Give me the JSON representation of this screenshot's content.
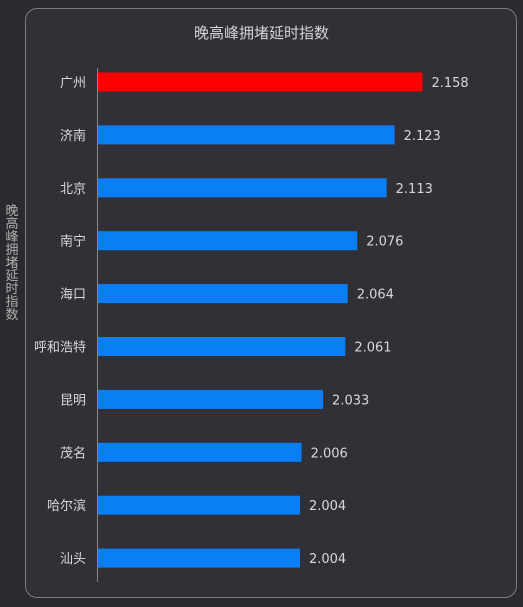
{
  "chart_data": {
    "type": "bar",
    "orientation": "horizontal",
    "title": "晚高峰拥堵延时指数",
    "ylabel": "晚高峰拥堵延时指数",
    "xlabel": "",
    "xlim": [
      1.75,
      2.17
    ],
    "categories": [
      "广州",
      "济南",
      "北京",
      "南宁",
      "海口",
      "呼和浩特",
      "昆明",
      "茂名",
      "哈尔滨",
      "汕头"
    ],
    "values": [
      2.158,
      2.123,
      2.113,
      2.076,
      2.064,
      2.061,
      2.033,
      2.006,
      2.004,
      2.004
    ],
    "value_labels": [
      "2.158",
      "2.123",
      "2.113",
      "2.076",
      "2.064",
      "2.061",
      "2.033",
      "2.006",
      "2.004",
      "2.004"
    ],
    "highlight_index": 0,
    "colors": {
      "bar": "#0a7ff5",
      "highlight": "#ff0000",
      "axis": "#888888"
    },
    "grid": false,
    "legend": "none"
  }
}
